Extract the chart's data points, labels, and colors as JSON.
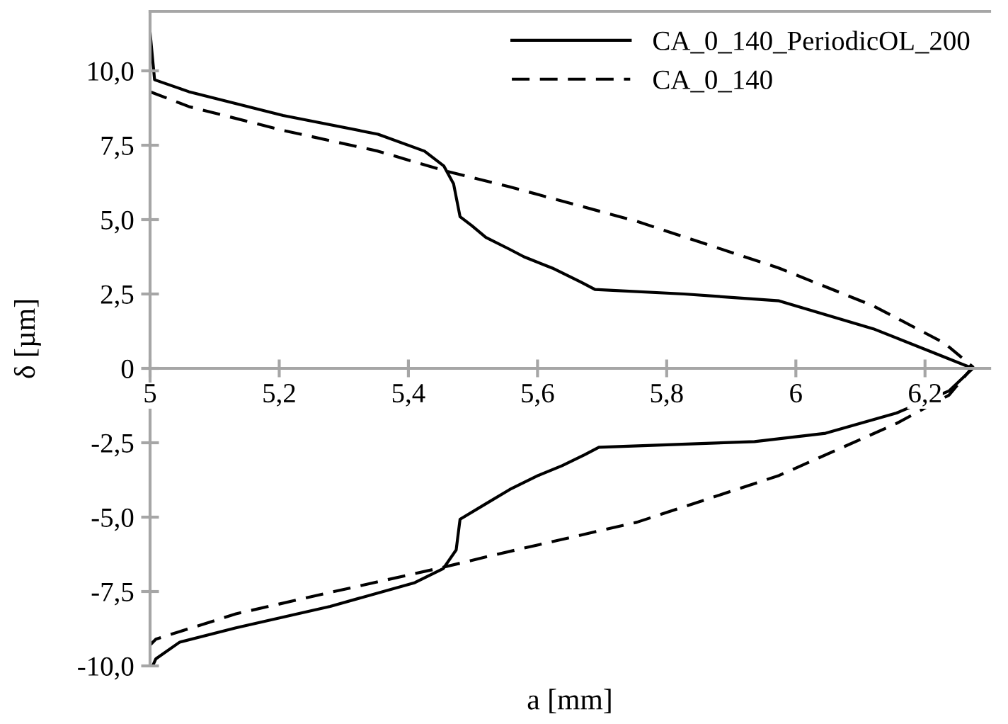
{
  "chart_data": {
    "type": "line",
    "xlabel": "a [mm]",
    "ylabel": "δ [µm]",
    "xlim": [
      5,
      6.3
    ],
    "ylim": [
      -10,
      12
    ],
    "xticks": [
      5,
      {
        "value": 5.2,
        "label": "5,2"
      },
      {
        "value": 5.4,
        "label": "5,4"
      },
      {
        "value": 5.6,
        "label": "5,6"
      },
      {
        "value": 5.8,
        "label": "5,8"
      },
      6,
      {
        "value": 6.2,
        "label": "6,2"
      }
    ],
    "yticks": [
      {
        "value": -10,
        "label": "-10,0"
      },
      {
        "value": -7.5,
        "label": "-7,5"
      },
      {
        "value": -5,
        "label": "-5,0"
      },
      {
        "value": -2.5,
        "label": "-2,5"
      },
      0,
      {
        "value": 2.5,
        "label": "2,5"
      },
      {
        "value": 5,
        "label": "5,0"
      },
      {
        "value": 7.5,
        "label": "7,5"
      },
      {
        "value": 10,
        "label": "10,0"
      }
    ],
    "grid": false,
    "legend": "top right",
    "series": [
      {
        "name": "CA_0_140_PeriodicOL_200",
        "color": "#000000",
        "line_style": "solid",
        "x": [
          5.0,
          5.007,
          5.06,
          5.206,
          5.353,
          5.425,
          5.455,
          5.47,
          5.48,
          5.498,
          5.52,
          5.557,
          5.579,
          5.623,
          5.667,
          5.689,
          5.827,
          5.974,
          6.12,
          6.23,
          6.274,
          6.237,
          6.156,
          6.046,
          5.936,
          5.695,
          5.673,
          5.638,
          5.601,
          5.557,
          5.52,
          5.48,
          5.474,
          5.454,
          5.41,
          5.279,
          5.133,
          5.046,
          5.009,
          5.004
        ],
        "values": [
          11.3,
          9.7,
          9.3,
          8.5,
          7.87,
          7.3,
          6.8,
          6.2,
          5.1,
          4.8,
          4.4,
          4.0,
          3.75,
          3.37,
          2.9,
          2.65,
          2.5,
          2.27,
          1.33,
          0.38,
          0,
          -0.76,
          -1.5,
          -2.18,
          -2.46,
          -2.65,
          -2.9,
          -3.27,
          -3.6,
          -4.07,
          -4.55,
          -5.07,
          -6.1,
          -6.73,
          -7.2,
          -8.0,
          -8.72,
          -9.2,
          -9.76,
          -10.0
        ]
      },
      {
        "name": "CA_0_140",
        "color": "#000000",
        "line_style": "dashed",
        "x": [
          5.0,
          5.06,
          5.206,
          5.353,
          5.455,
          5.557,
          5.754,
          5.974,
          6.12,
          6.23,
          6.274,
          6.237,
          6.156,
          5.974,
          5.754,
          5.535,
          5.455,
          5.279,
          5.133,
          5.009,
          5.0
        ],
        "values": [
          9.3,
          8.8,
          8.0,
          7.3,
          6.65,
          6.1,
          4.94,
          3.37,
          2.1,
          0.85,
          0.05,
          -0.9,
          -1.85,
          -3.6,
          -5.17,
          -6.26,
          -6.68,
          -7.53,
          -8.25,
          -9.1,
          -9.3
        ]
      }
    ]
  }
}
